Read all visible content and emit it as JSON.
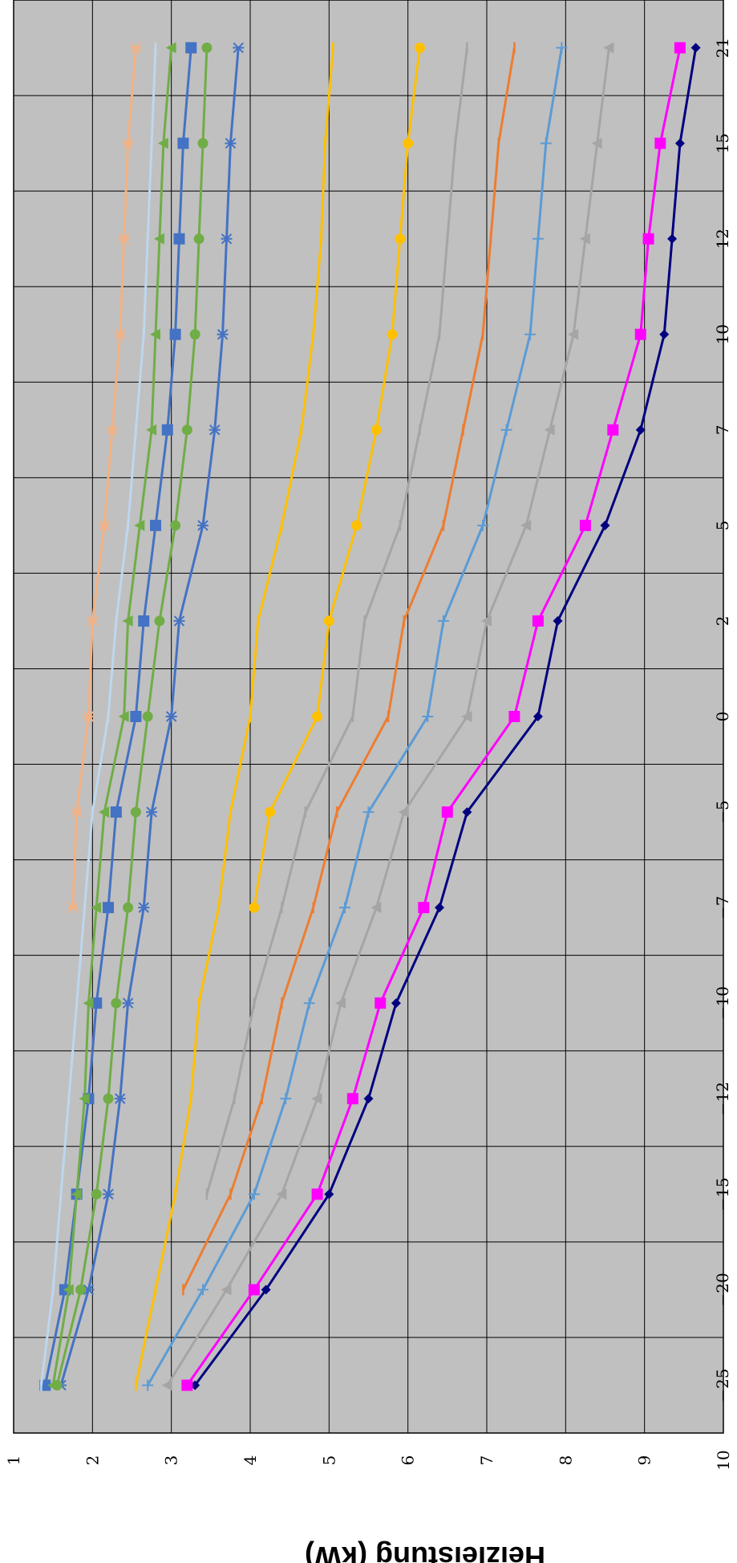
{
  "chart_data": {
    "type": "line",
    "title": "",
    "ylabel": "Heizleistung (kW)",
    "xlabel": "",
    "categories": [
      "-25",
      "-20",
      "-15",
      "-12",
      "-10",
      "-7",
      "-5",
      "0",
      "2",
      "5",
      "7",
      "10",
      "12",
      "15",
      "21"
    ],
    "ylim": [
      1,
      10
    ],
    "yticks": [
      1,
      2,
      3,
      4,
      5,
      6,
      7,
      8,
      9,
      10
    ],
    "grid": true,
    "orientation": "rotated-90-clockwise",
    "plot_background": "#c0c0c0",
    "series": [
      {
        "color": "#000080",
        "marker": "diamond",
        "values": [
          3.3,
          4.2,
          5.0,
          5.5,
          5.85,
          6.4,
          6.75,
          7.65,
          7.9,
          8.5,
          8.95,
          9.25,
          9.35,
          9.45,
          9.65
        ]
      },
      {
        "color": "#ff00ff",
        "marker": "square",
        "values": [
          3.2,
          4.05,
          4.85,
          5.3,
          5.65,
          6.2,
          6.5,
          7.35,
          7.65,
          8.25,
          8.6,
          8.95,
          9.05,
          9.2,
          9.45
        ]
      },
      {
        "color": "#a5a5a5",
        "marker": "triangle",
        "values": [
          2.95,
          3.7,
          4.4,
          4.85,
          5.15,
          5.6,
          5.95,
          6.75,
          7.0,
          7.5,
          7.8,
          8.1,
          8.25,
          8.4,
          8.55
        ]
      },
      {
        "color": "#5b9bd5",
        "marker": "plus",
        "values": [
          2.7,
          3.4,
          4.05,
          4.45,
          4.75,
          5.2,
          5.5,
          6.25,
          6.45,
          6.95,
          7.25,
          7.55,
          7.65,
          7.75,
          7.95
        ]
      },
      {
        "color": "#ed7d31",
        "marker": "dash",
        "values": [
          null,
          3.15,
          3.75,
          4.15,
          4.4,
          4.8,
          5.1,
          5.75,
          5.95,
          6.45,
          6.7,
          6.95,
          7.05,
          7.15,
          7.35
        ]
      },
      {
        "color": "#a5a5a5",
        "marker": "dash",
        "values": [
          null,
          null,
          3.45,
          3.8,
          4.05,
          4.4,
          4.7,
          5.3,
          5.45,
          5.9,
          6.15,
          6.4,
          6.5,
          6.6,
          6.75
        ]
      },
      {
        "color": "#ffc000",
        "marker": "circle",
        "values": [
          null,
          null,
          null,
          null,
          null,
          4.05,
          4.25,
          4.85,
          5.0,
          5.35,
          5.6,
          5.8,
          5.9,
          6.0,
          6.15
        ]
      },
      {
        "color": "#ffc000",
        "marker": "dash",
        "values": [
          2.55,
          2.8,
          3.05,
          3.25,
          3.35,
          3.6,
          3.75,
          4.0,
          4.1,
          4.4,
          4.65,
          4.8,
          4.9,
          4.95,
          5.05
        ]
      },
      {
        "color": "#4472c4",
        "marker": "star",
        "values": [
          1.6,
          1.95,
          2.2,
          2.35,
          2.45,
          2.65,
          2.75,
          3.0,
          3.1,
          3.4,
          3.55,
          3.65,
          3.7,
          3.75,
          3.85
        ]
      },
      {
        "color": "#70ad47",
        "marker": "circle",
        "values": [
          1.55,
          1.85,
          2.05,
          2.2,
          2.3,
          2.45,
          2.55,
          2.7,
          2.85,
          3.05,
          3.2,
          3.3,
          3.35,
          3.4,
          3.45
        ]
      },
      {
        "color": "#4472c4",
        "marker": "square",
        "values": [
          1.4,
          1.65,
          1.8,
          1.95,
          2.05,
          2.2,
          2.3,
          2.55,
          2.65,
          2.8,
          2.95,
          3.05,
          3.1,
          3.15,
          3.25
        ]
      },
      {
        "color": "#70ad47",
        "marker": "triangle",
        "values": [
          1.5,
          1.7,
          1.8,
          1.9,
          1.95,
          2.05,
          2.15,
          2.4,
          2.45,
          2.6,
          2.75,
          2.8,
          2.85,
          2.9,
          3.0
        ]
      },
      {
        "color": "#bdd7ee",
        "marker": "dash",
        "values": [
          1.35,
          1.5,
          1.6,
          1.7,
          1.8,
          1.9,
          2.0,
          2.2,
          2.3,
          2.45,
          2.55,
          2.65,
          2.7,
          2.75,
          2.8
        ]
      },
      {
        "color": "#f4b183",
        "marker": "star",
        "values": [
          null,
          null,
          null,
          null,
          null,
          1.75,
          1.8,
          1.95,
          2.0,
          2.15,
          2.25,
          2.35,
          2.4,
          2.45,
          2.55
        ]
      }
    ]
  }
}
